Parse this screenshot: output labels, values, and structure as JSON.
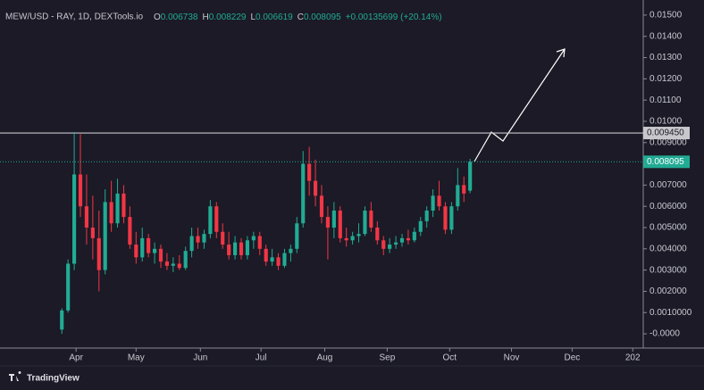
{
  "chart_data": {
    "type": "candlestick",
    "title": "MEW/USD - RAY, 1D, DEXTools.io",
    "ohlc_labels": [
      "O",
      "H",
      "L",
      "C"
    ],
    "change": "+0.00135699 (+20.14%)",
    "brand": "TradingView",
    "up_color": "#22ab94",
    "down_color": "#f23645",
    "grid": false,
    "categories": [
      null,
      null,
      null,
      null,
      null,
      null,
      null,
      null,
      null,
      null,
      null,
      null,
      null,
      null,
      null,
      null,
      null,
      null,
      null,
      null,
      null,
      null,
      null,
      null,
      null,
      null,
      null,
      null,
      null,
      null,
      null,
      null,
      null,
      null,
      null,
      null,
      null,
      null,
      null,
      null,
      null,
      null,
      null,
      null,
      null,
      null,
      null,
      null,
      null,
      null,
      null,
      null,
      null,
      null,
      null,
      null,
      null,
      null,
      null,
      null,
      null,
      null,
      null,
      null,
      null,
      null,
      null
    ],
    "open": [
      0.0002,
      0.0011,
      0.0033,
      0.0075,
      0.006,
      0.005,
      0.0045,
      0.003,
      0.0062,
      0.0052,
      0.0066,
      0.0055,
      0.0042,
      0.0036,
      0.0045,
      0.0038,
      0.004,
      0.0034,
      0.0032,
      0.0033,
      0.0031,
      0.0039,
      0.0046,
      0.0043,
      0.0047,
      0.006,
      0.0048,
      0.0042,
      0.0037,
      0.0043,
      0.0037,
      0.0044,
      0.0046,
      0.004,
      0.0034,
      0.0036,
      0.0032,
      0.0038,
      0.004,
      0.0052,
      0.008,
      0.0072,
      0.0065,
      0.0055,
      0.005,
      0.0058,
      0.0045,
      0.0044,
      0.0046,
      0.0047,
      0.0058,
      0.005,
      0.0044,
      0.004,
      0.0042,
      0.0043,
      0.0045,
      0.0044,
      0.0048,
      0.0053,
      0.0058,
      0.0065,
      0.006,
      0.0049,
      0.006,
      0.007,
      0.006738
    ],
    "high": [
      0.0012,
      0.0035,
      0.0095,
      0.0094,
      0.0075,
      0.0065,
      0.0058,
      0.0068,
      0.0072,
      0.0073,
      0.007,
      0.006,
      0.0048,
      0.005,
      0.0047,
      0.0043,
      0.0042,
      0.0038,
      0.0036,
      0.0037,
      0.0041,
      0.005,
      0.005,
      0.0049,
      0.0063,
      0.0062,
      0.0052,
      0.0048,
      0.0046,
      0.0045,
      0.0046,
      0.0048,
      0.0048,
      0.0042,
      0.004,
      0.0038,
      0.004,
      0.0042,
      0.0055,
      0.0086,
      0.0088,
      0.0082,
      0.007,
      0.006,
      0.0062,
      0.006,
      0.005,
      0.0048,
      0.0052,
      0.006,
      0.0062,
      0.0053,
      0.0046,
      0.0045,
      0.0046,
      0.0047,
      0.0049,
      0.005,
      0.0055,
      0.006,
      0.0068,
      0.0072,
      0.0062,
      0.0062,
      0.0078,
      0.0074,
      0.008229
    ],
    "low": [
      0.0,
      0.001,
      0.003,
      0.0055,
      0.0042,
      0.0035,
      0.002,
      0.0028,
      0.0048,
      0.005,
      0.0052,
      0.004,
      0.0033,
      0.0034,
      0.0036,
      0.0033,
      0.0031,
      0.003,
      0.0029,
      0.003,
      0.003,
      0.0036,
      0.004,
      0.004,
      0.0045,
      0.0045,
      0.004,
      0.0035,
      0.0035,
      0.0035,
      0.0035,
      0.004,
      0.0037,
      0.0032,
      0.0032,
      0.003,
      0.0031,
      0.0034,
      0.0038,
      0.005,
      0.0065,
      0.006,
      0.0052,
      0.0035,
      0.0045,
      0.0043,
      0.0041,
      0.0042,
      0.0043,
      0.0046,
      0.0048,
      0.0042,
      0.0037,
      0.0038,
      0.004,
      0.0041,
      0.0042,
      0.0043,
      0.0046,
      0.005,
      0.0055,
      0.0058,
      0.0047,
      0.0047,
      0.0058,
      0.0062,
      0.006619
    ],
    "close": [
      0.0011,
      0.0033,
      0.0075,
      0.006,
      0.005,
      0.0045,
      0.003,
      0.0062,
      0.0052,
      0.0066,
      0.0055,
      0.0042,
      0.0036,
      0.0045,
      0.0038,
      0.004,
      0.0034,
      0.0032,
      0.0033,
      0.0031,
      0.0039,
      0.0046,
      0.0043,
      0.0047,
      0.006,
      0.0048,
      0.0042,
      0.0037,
      0.0043,
      0.0037,
      0.0044,
      0.0046,
      0.004,
      0.0034,
      0.0036,
      0.0032,
      0.0038,
      0.004,
      0.0052,
      0.008,
      0.0072,
      0.0065,
      0.0055,
      0.005,
      0.0058,
      0.0045,
      0.0044,
      0.0046,
      0.0047,
      0.0058,
      0.005,
      0.0044,
      0.004,
      0.0042,
      0.0043,
      0.0045,
      0.0044,
      0.0048,
      0.0053,
      0.0058,
      0.0065,
      0.006,
      0.0049,
      0.006,
      0.007,
      0.0066,
      0.008095
    ],
    "xlim": [
      -10,
      94
    ],
    "xticks": [
      {
        "value": 2.3,
        "label": "Apr"
      },
      {
        "value": 12,
        "label": "May"
      },
      {
        "value": 22.4,
        "label": "Jun"
      },
      {
        "value": 32.2,
        "label": "Jul"
      },
      {
        "value": 42.5,
        "label": "Aug"
      },
      {
        "value": 52.6,
        "label": "Sep"
      },
      {
        "value": 62.7,
        "label": "Oct"
      },
      {
        "value": 72.7,
        "label": "Nov"
      },
      {
        "value": 82.5,
        "label": "Dec"
      },
      {
        "value": 92.3,
        "label": "202"
      }
    ],
    "ylim": [
      -0.00067,
      0.01571
    ],
    "yticks": [
      {
        "value": 0.015,
        "label": "0.01500"
      },
      {
        "value": 0.014,
        "label": "0.01400"
      },
      {
        "value": 0.013,
        "label": "0.01300"
      },
      {
        "value": 0.012,
        "label": "0.01200"
      },
      {
        "value": 0.011,
        "label": "0.01100"
      },
      {
        "value": 0.01,
        "label": "0.01000"
      },
      {
        "value": 0.009,
        "label": "0.009000"
      },
      {
        "value": 0.007,
        "label": "0.007000"
      },
      {
        "value": 0.006,
        "label": "0.006000"
      },
      {
        "value": 0.005,
        "label": "0.005000"
      },
      {
        "value": 0.004,
        "label": "0.004000"
      },
      {
        "value": 0.003,
        "label": "0.003000"
      },
      {
        "value": 0.002,
        "label": "0.002000"
      },
      {
        "value": 0.001,
        "label": "0.0010000"
      },
      {
        "value": 0,
        "label": "-0.0000"
      }
    ],
    "level": {
      "value": 0.00945,
      "label": "0.009450"
    }
  }
}
